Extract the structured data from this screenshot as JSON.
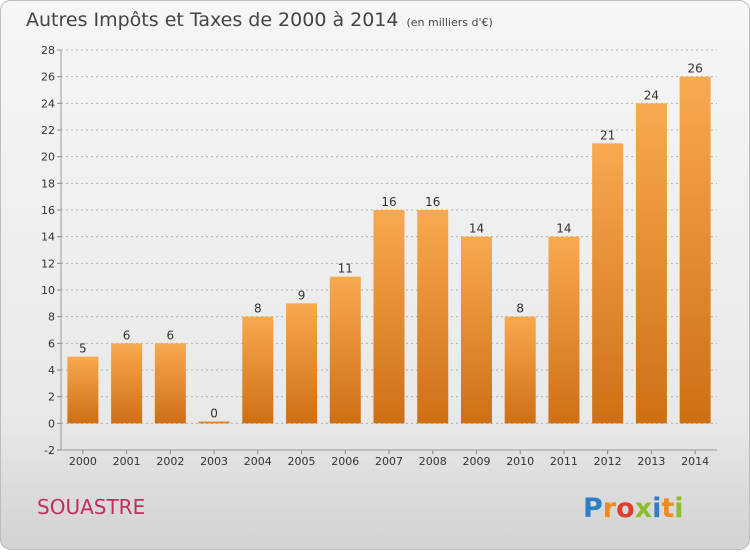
{
  "header": {
    "title": "Autres Impôts et Taxes de 2000 à 2014",
    "unit": "(en milliers d'€)"
  },
  "commune": "SOUASTRE",
  "brand": {
    "letters": [
      "P",
      "r",
      "o",
      "x",
      "i",
      "t",
      "i"
    ],
    "colors": [
      "#2f7fc7",
      "#f08a1c",
      "#e23c2c",
      "#8bbd2c",
      "#2f7fc7",
      "#f08a1c",
      "#8bbd2c"
    ]
  },
  "colors": {
    "bar_top": "#f8a94f",
    "bar_bottom": "#cf6f14",
    "commune_text": "#c0305a",
    "title_text": "#444444"
  },
  "chart_data": {
    "type": "bar",
    "title": "Autres Impôts et Taxes de 2000 à 2014",
    "subtitle": "(en milliers d'€)",
    "categories": [
      "2000",
      "2001",
      "2002",
      "2003",
      "2004",
      "2005",
      "2006",
      "2007",
      "2008",
      "2009",
      "2010",
      "2011",
      "2012",
      "2013",
      "2014"
    ],
    "values": [
      5,
      6,
      6,
      0,
      8,
      9,
      11,
      16,
      16,
      14,
      8,
      14,
      21,
      24,
      26
    ],
    "ylim": [
      -2,
      28
    ],
    "yticks": [
      -2,
      0,
      2,
      4,
      6,
      8,
      10,
      12,
      14,
      16,
      18,
      20,
      22,
      24,
      26,
      28
    ],
    "grid": "horizontal-dotted",
    "legend": "none"
  }
}
